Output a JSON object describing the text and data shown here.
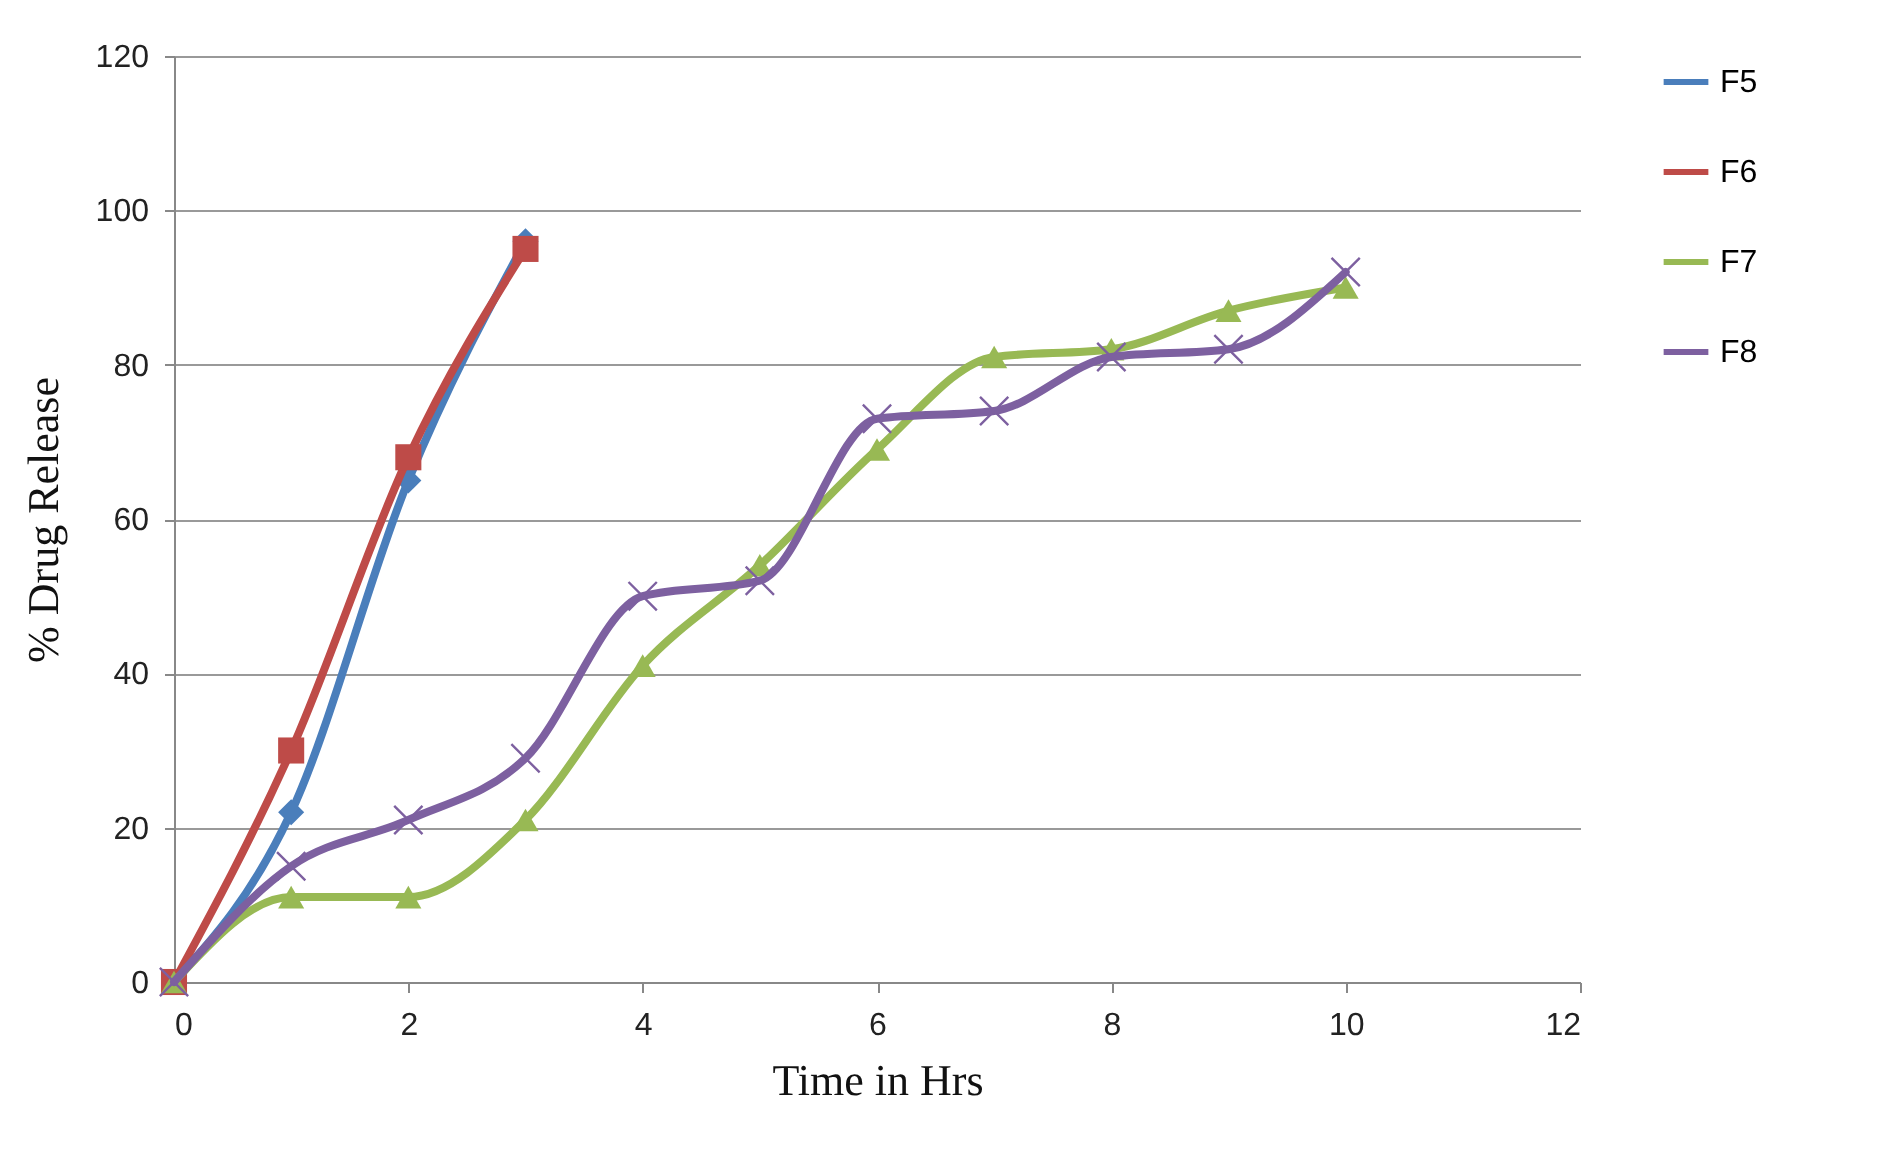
{
  "chart_data": {
    "type": "line",
    "xlabel": "Time in Hrs",
    "ylabel": "% Drug Release",
    "x": [
      0,
      1,
      2,
      3,
      4,
      5,
      6,
      7,
      8,
      9,
      10
    ],
    "series": [
      {
        "name": "F5",
        "color": "#4a7ebb",
        "marker": "diamond",
        "x": [
          0,
          1,
          2,
          3
        ],
        "values": [
          0,
          22,
          65,
          96
        ]
      },
      {
        "name": "F6",
        "color": "#be4b48",
        "marker": "square",
        "x": [
          0,
          1,
          2,
          3
        ],
        "values": [
          0,
          30,
          68,
          95
        ]
      },
      {
        "name": "F7",
        "color": "#98b954",
        "marker": "triangle",
        "values": [
          0,
          11,
          11,
          21,
          41,
          54,
          69,
          81,
          82,
          87,
          90
        ]
      },
      {
        "name": "F8",
        "color": "#7d60a0",
        "marker": "cross",
        "values": [
          0,
          15,
          21,
          29,
          50,
          52,
          73,
          74,
          81,
          82,
          92
        ]
      }
    ],
    "xlim": [
      0,
      12
    ],
    "xticks": [
      0,
      2,
      4,
      6,
      8,
      10,
      12
    ],
    "ylim": [
      0,
      120
    ],
    "yticks": [
      0,
      20,
      40,
      60,
      80,
      100,
      120
    ],
    "grid": "y",
    "legend": "right"
  }
}
